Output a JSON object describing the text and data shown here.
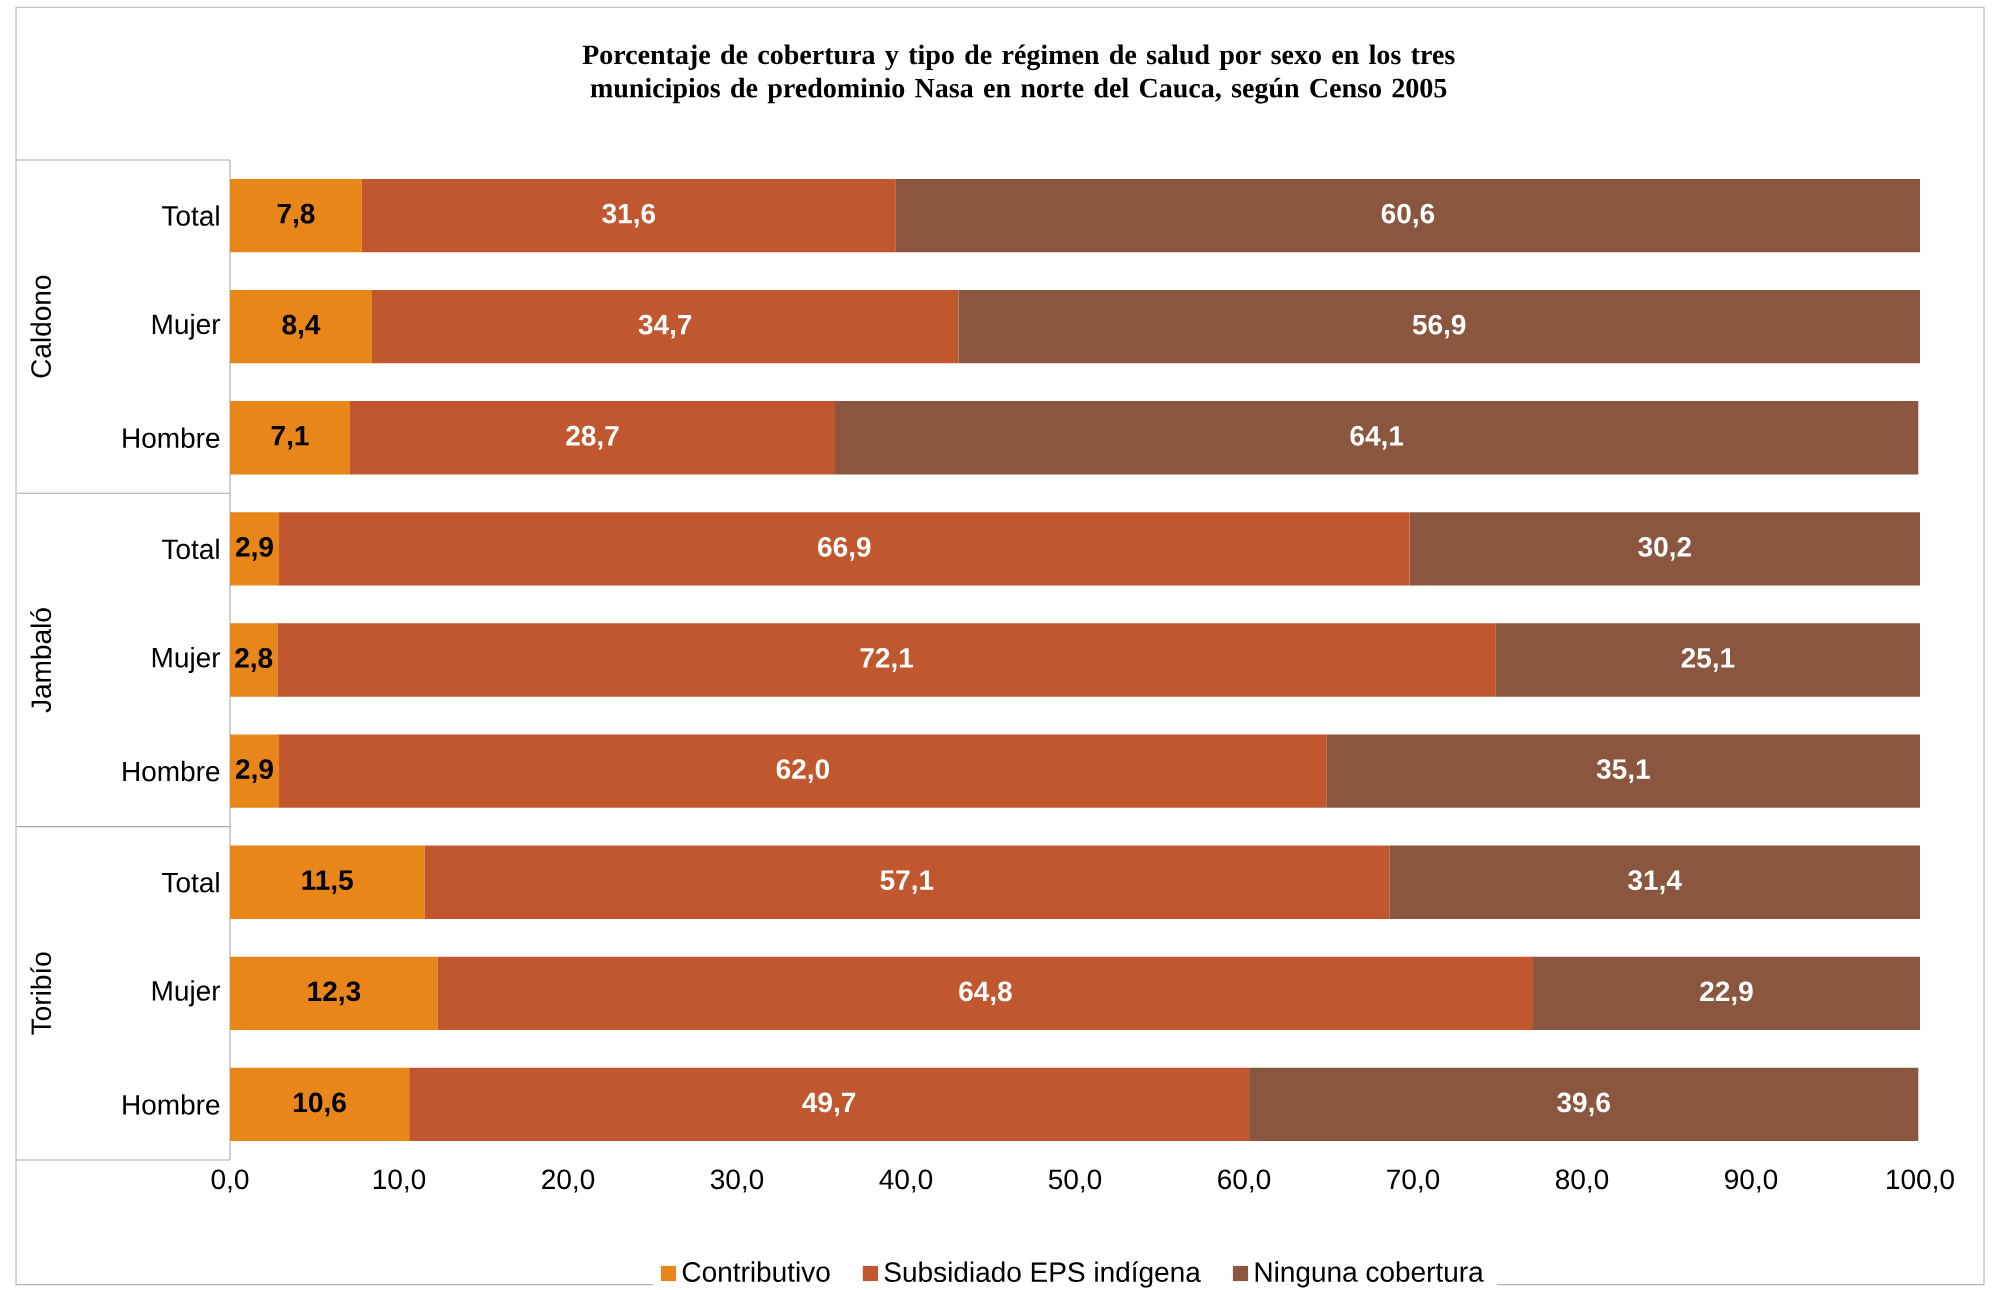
{
  "chart_data": {
    "type": "bar",
    "orientation": "horizontal",
    "stacked": true,
    "title": "Porcentaje de cobertura y tipo de régimen de salud por sexo en los tres municipios de predominio Nasa en norte del Cauca,  según Censo 2005",
    "categories": [
      "Total",
      "Mujer",
      "Hombre",
      "Total",
      "Mujer",
      "Hombre",
      "Total",
      "Mujer",
      "Hombre"
    ],
    "annotations": [
      "Caldono",
      "Jambaló",
      "Toribío"
    ],
    "series": [
      {
        "name": "Contributivo",
        "color": "#e8861a",
        "values": [
          7.8,
          8.4,
          7.1,
          2.9,
          2.8,
          2.9,
          11.5,
          12.3,
          10.6
        ],
        "value_labels": [
          "7,8",
          "8,4",
          "7,1",
          "2,9",
          "2,8",
          "2,9",
          "11,5",
          "12,3",
          "10,6"
        ]
      },
      {
        "name": "Subsidiado EPS indígena",
        "color": "#c0572e",
        "values": [
          31.6,
          34.7,
          28.7,
          66.9,
          72.1,
          62.0,
          57.1,
          64.8,
          49.7
        ],
        "value_labels": [
          "31,6",
          "34,7",
          "28,7",
          "66,9",
          "72,1",
          "62,0",
          "57,1",
          "64,8",
          "49,7"
        ]
      },
      {
        "name": "Ninguna cobertura",
        "color": "#8b5640",
        "values": [
          60.6,
          56.9,
          64.1,
          30.2,
          25.1,
          35.1,
          31.4,
          22.9,
          39.6
        ],
        "value_labels": [
          "60,6",
          "56,9",
          "64,1",
          "30,2",
          "25,1",
          "35,1",
          "31,4",
          "22,9",
          "39,6"
        ]
      }
    ],
    "xlim": [
      0,
      100
    ],
    "xticks": [
      {
        "value": 0,
        "label": "0,0"
      },
      {
        "value": 10,
        "label": "10,0"
      },
      {
        "value": 20,
        "label": "20,0"
      },
      {
        "value": 30,
        "label": "30,0"
      },
      {
        "value": 40,
        "label": "40,0"
      },
      {
        "value": 50,
        "label": "50,0"
      },
      {
        "value": 60,
        "label": "60,0"
      },
      {
        "value": 70,
        "label": "70,0"
      },
      {
        "value": 80,
        "label": "80,0"
      },
      {
        "value": 90,
        "label": "90,0"
      },
      {
        "value": 100,
        "label": "100,0"
      }
    ],
    "legend": "bottom"
  }
}
